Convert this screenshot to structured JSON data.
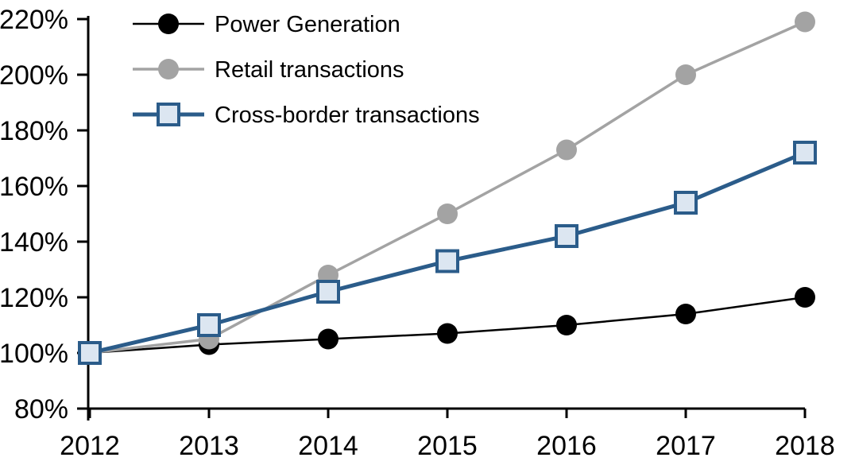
{
  "figure": {
    "background": "#FFFFFF",
    "axis_color": "#000000",
    "text_color": "#000000"
  },
  "chart_data": {
    "type": "line",
    "title": "",
    "xlabel": "",
    "ylabel": "",
    "x_categories": [
      "2012",
      "2013",
      "2014",
      "2015",
      "2016",
      "2017",
      "2018"
    ],
    "ylim": [
      80,
      220
    ],
    "ytick_step": 20,
    "ytick_labels": [
      "80%",
      "100%",
      "120%",
      "140%",
      "160%",
      "180%",
      "200%",
      "220%"
    ],
    "grid": false,
    "legend_position": "top-left",
    "series": [
      {
        "name": "Power Generation",
        "color": "#000000",
        "marker": "circle",
        "marker_fill": "#000000",
        "line_width": 2.5,
        "values": [
          100,
          103,
          105,
          107,
          110,
          114,
          120
        ]
      },
      {
        "name": "Retail transactions",
        "color": "#A3A3A3",
        "marker": "circle",
        "marker_fill": "#A3A3A3",
        "line_width": 3.5,
        "values": [
          100,
          105,
          128,
          150,
          173,
          200,
          219
        ]
      },
      {
        "name": "Cross-border transactions",
        "color": "#2B5C8A",
        "marker": "square",
        "marker_fill": "#DCE6F1",
        "marker_border_width": 4,
        "line_width": 5,
        "values": [
          100,
          110,
          122,
          133,
          142,
          154,
          172
        ]
      }
    ]
  }
}
